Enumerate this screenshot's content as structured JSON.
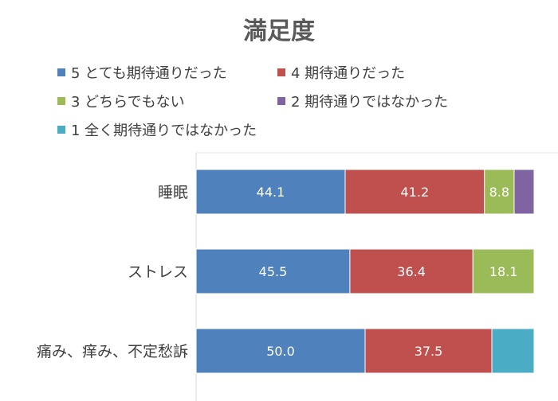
{
  "chart_data": {
    "type": "bar",
    "orientation": "horizontal",
    "stacked": "percent",
    "title": "満足度",
    "categories": [
      "睡眠",
      "ストレス",
      "痛み、痒み、不定愁訴"
    ],
    "series": [
      {
        "name": "5 とても期待通りだった",
        "color": "#4f81bd",
        "values": [
          44.1,
          45.5,
          50.0
        ]
      },
      {
        "name": "4 期待通りだった",
        "color": "#c0504d",
        "values": [
          41.2,
          36.4,
          37.5
        ]
      },
      {
        "name": "3 どちらでもない",
        "color": "#9bbb59",
        "values": [
          8.8,
          18.1,
          0
        ]
      },
      {
        "name": "2 期待通りではなかった",
        "color": "#8064a2",
        "values": [
          5.9,
          0,
          0
        ]
      },
      {
        "name": "1 全く期待通りではなかった",
        "color": "#4bacc6",
        "values": [
          0,
          0,
          12.5
        ]
      }
    ],
    "data_labels": [
      [
        "44.1",
        "41.2",
        "8.8",
        "",
        ""
      ],
      [
        "45.5",
        "36.4",
        "18.1",
        "",
        ""
      ],
      [
        "50.0",
        "37.5",
        "",
        "",
        ""
      ]
    ],
    "xlim": [
      0,
      100
    ],
    "legend_position": "top",
    "grid": false
  }
}
